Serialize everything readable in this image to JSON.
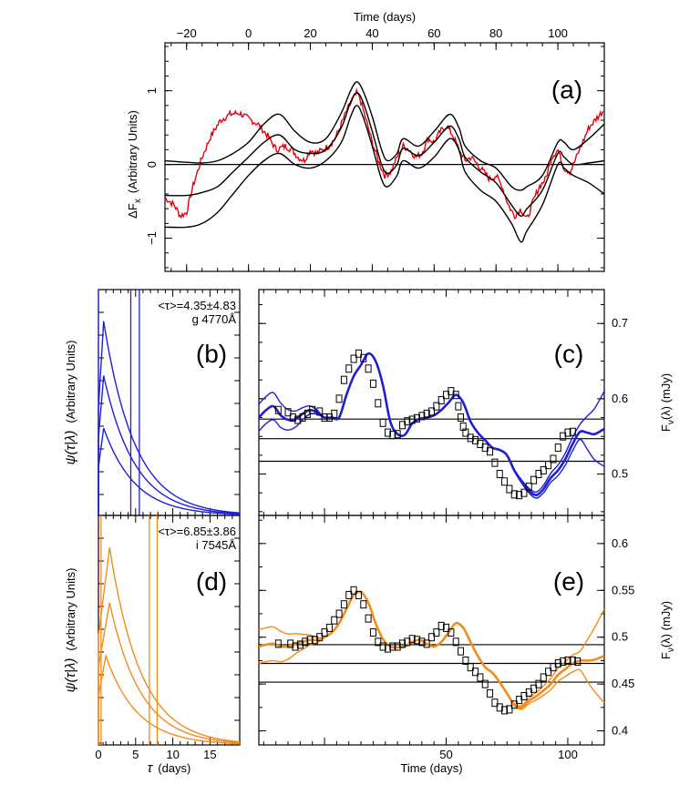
{
  "chart_data": [
    {
      "panel": "(a)",
      "type": "line",
      "title": "",
      "top_axis_label": "Time (days)",
      "top_tick_labels": [
        "−20",
        "0",
        "20",
        "40",
        "60",
        "80",
        "100"
      ],
      "top_ticks": [
        -20,
        0,
        20,
        40,
        60,
        80,
        100
      ],
      "xlim": [
        -27,
        115
      ],
      "ylabel": "ΔF_x  (Arbitrary Units)",
      "ylabel_main": "ΔF",
      "ylabel_sub": "x",
      "ylabel_units": "(Arbitrary Units)",
      "y_tick_labels": [
        "−1",
        "0",
        "1"
      ],
      "y_ticks": [
        -1,
        0,
        1
      ],
      "ylim": [
        -1.45,
        1.65
      ],
      "series": [
        {
          "name": "driving light curve (red)",
          "color": "#e8000b",
          "x": [
            -27,
            -24,
            -22,
            -20,
            -18,
            -15,
            -12,
            -9,
            -6,
            -3,
            0,
            3,
            6,
            9,
            12,
            14,
            16,
            18,
            20,
            22,
            24,
            26,
            28,
            30,
            32,
            34,
            35,
            36,
            38,
            40,
            42,
            44,
            46,
            48,
            50,
            52,
            54,
            56,
            58,
            60,
            62,
            64,
            66,
            68,
            70,
            72,
            74,
            76,
            78,
            80,
            82,
            84,
            86,
            88,
            90,
            92,
            94,
            96,
            98,
            100,
            102,
            104,
            106,
            108,
            110,
            112,
            115
          ],
          "y": [
            -0.45,
            -0.55,
            -0.7,
            -0.65,
            -0.3,
            0.1,
            0.4,
            0.6,
            0.68,
            0.7,
            0.62,
            0.55,
            0.4,
            0.2,
            0.25,
            0.2,
            0.1,
            0.05,
            0.2,
            0.15,
            0.2,
            0.25,
            0.35,
            0.55,
            0.75,
            0.9,
            0.97,
            0.9,
            0.6,
            0.3,
            0.05,
            -0.15,
            -0.1,
            0.1,
            0.25,
            0.2,
            0.1,
            0.15,
            0.35,
            0.3,
            0.45,
            0.52,
            0.4,
            0.2,
            0.05,
            0.1,
            0.0,
            -0.1,
            -0.2,
            -0.15,
            -0.3,
            -0.55,
            -0.7,
            -0.6,
            -0.75,
            -0.5,
            -0.3,
            -0.2,
            0.1,
            0.2,
            -0.05,
            -0.1,
            0.1,
            0.3,
            0.5,
            0.6,
            0.75
          ]
        },
        {
          "name": "model upper",
          "color": "#000000",
          "x": [
            -27,
            -20,
            -15,
            -10,
            -5,
            0,
            5,
            10,
            15,
            20,
            25,
            30,
            33,
            35,
            37,
            40,
            43,
            45,
            48,
            50,
            55,
            60,
            65,
            68,
            70,
            75,
            80,
            85,
            88,
            90,
            95,
            100,
            102,
            105,
            110,
            115
          ],
          "y": [
            0.05,
            0.03,
            0.02,
            0.05,
            0.15,
            0.3,
            0.55,
            0.68,
            0.45,
            0.3,
            0.35,
            0.7,
            1.0,
            1.12,
            1.0,
            0.65,
            0.2,
            0.05,
            0.15,
            0.35,
            0.25,
            0.45,
            0.68,
            0.5,
            0.25,
            0.05,
            -0.05,
            -0.3,
            -0.35,
            -0.3,
            -0.15,
            0.3,
            0.3,
            0.2,
            0.35,
            0.55
          ]
        },
        {
          "name": "model mean",
          "color": "#000000",
          "x": [
            -27,
            -20,
            -15,
            -10,
            -5,
            0,
            5,
            10,
            15,
            20,
            25,
            30,
            33,
            35,
            37,
            40,
            43,
            45,
            48,
            50,
            55,
            60,
            65,
            68,
            70,
            75,
            80,
            85,
            88,
            90,
            95,
            100,
            102,
            105,
            110,
            115
          ],
          "y": [
            -0.42,
            -0.42,
            -0.38,
            -0.3,
            -0.1,
            0.1,
            0.3,
            0.4,
            0.2,
            0.15,
            0.2,
            0.5,
            0.85,
            0.97,
            0.85,
            0.45,
            0.0,
            -0.12,
            0.0,
            0.22,
            0.12,
            0.3,
            0.52,
            0.35,
            0.1,
            -0.1,
            -0.25,
            -0.55,
            -0.7,
            -0.6,
            -0.35,
            0.15,
            0.1,
            0.0,
            0.02,
            0.05
          ]
        },
        {
          "name": "model lower",
          "color": "#000000",
          "x": [
            -27,
            -20,
            -15,
            -10,
            -5,
            0,
            5,
            10,
            15,
            20,
            25,
            30,
            33,
            35,
            37,
            40,
            43,
            45,
            48,
            50,
            55,
            60,
            65,
            68,
            70,
            75,
            80,
            85,
            88,
            90,
            95,
            100,
            102,
            105,
            110,
            115
          ],
          "y": [
            -0.85,
            -0.85,
            -0.8,
            -0.65,
            -0.4,
            -0.15,
            0.05,
            0.15,
            0.0,
            -0.05,
            0.05,
            0.3,
            0.65,
            0.8,
            0.65,
            0.25,
            -0.2,
            -0.3,
            -0.15,
            0.05,
            -0.05,
            0.1,
            0.35,
            0.2,
            -0.1,
            -0.35,
            -0.5,
            -0.8,
            -1.05,
            -0.9,
            -0.55,
            0.0,
            -0.05,
            -0.15,
            -0.25,
            -0.4
          ]
        }
      ],
      "hlines": [
        0
      ]
    },
    {
      "panel": "(b)",
      "type": "line",
      "ylabel": "ψ(τ|λ)  (Arbitrary Units)",
      "ylabel_psi": "ψ(τ|λ)",
      "ylabel_units": "(Arbitrary Units)",
      "xlim": [
        0,
        19
      ],
      "annotation_tau": "<τ>=4.35±4.83",
      "annotation_band": "g 4770Å",
      "color": "#1f1fd6",
      "vlines": [
        0,
        4.35,
        5.5
      ],
      "curves": [
        {
          "name": "upper",
          "peak_tau": 0.7,
          "peak_value": 1.0
        },
        {
          "name": "mean",
          "peak_tau": 0.7,
          "peak_value": 0.72
        },
        {
          "name": "lower",
          "peak_tau": 0.7,
          "peak_value": 0.45
        }
      ]
    },
    {
      "panel": "(c)",
      "type": "line",
      "ylabel": "F_ν(λ)  (mJy)",
      "ylabel_main": "F",
      "ylabel_sub": "ν",
      "ylabel_rest": "(λ)  (mJy)",
      "xlim": [
        -27,
        115
      ],
      "y_tick_labels": [
        "0.5",
        "0.6",
        "0.7"
      ],
      "y_ticks": [
        0.5,
        0.6,
        0.7
      ],
      "ylim": [
        0.445,
        0.745
      ],
      "hlines": [
        0.517,
        0.547,
        0.573
      ],
      "line_color": "#1f1fd6",
      "model_x": [
        -27,
        -24,
        -21,
        -18,
        -15,
        -12,
        -9,
        -6,
        -3,
        0,
        3,
        6,
        9,
        12,
        15,
        18,
        21,
        24,
        27,
        30,
        33,
        36,
        39,
        42,
        45,
        48,
        51,
        54,
        57,
        60,
        63,
        66,
        69,
        72,
        75,
        78,
        81,
        84,
        87,
        90,
        93,
        96,
        99,
        102,
        105,
        108,
        111,
        115
      ],
      "model_y": [
        0.575,
        0.585,
        0.59,
        0.578,
        0.572,
        0.573,
        0.58,
        0.585,
        0.582,
        0.575,
        0.575,
        0.575,
        0.605,
        0.63,
        0.645,
        0.66,
        0.65,
        0.618,
        0.57,
        0.553,
        0.552,
        0.567,
        0.573,
        0.575,
        0.578,
        0.585,
        0.595,
        0.605,
        0.595,
        0.57,
        0.555,
        0.545,
        0.535,
        0.532,
        0.525,
        0.505,
        0.49,
        0.478,
        0.472,
        0.48,
        0.495,
        0.505,
        0.52,
        0.54,
        0.556,
        0.555,
        0.553,
        0.56
      ],
      "data_x": [
        -19,
        -15,
        -13,
        -11,
        -9,
        -7,
        -5,
        -2,
        0,
        2,
        4,
        6,
        8,
        10,
        12,
        14,
        16,
        18,
        20,
        22,
        24,
        26,
        28,
        30,
        32,
        34,
        36,
        38,
        40,
        42,
        44,
        46,
        48,
        50,
        52,
        54,
        55,
        56,
        57,
        58,
        60,
        62,
        64,
        66,
        68,
        70,
        72,
        74,
        76,
        78,
        80,
        82,
        84,
        86,
        88,
        90,
        92,
        94,
        96,
        98,
        100,
        102
      ],
      "data_y": [
        0.585,
        0.582,
        0.575,
        0.572,
        0.575,
        0.58,
        0.585,
        0.583,
        0.575,
        0.575,
        0.58,
        0.6,
        0.625,
        0.64,
        0.653,
        0.66,
        0.654,
        0.64,
        0.62,
        0.594,
        0.568,
        0.555,
        0.552,
        0.553,
        0.565,
        0.57,
        0.572,
        0.574,
        0.577,
        0.58,
        0.583,
        0.59,
        0.598,
        0.605,
        0.61,
        0.605,
        0.59,
        0.575,
        0.563,
        0.555,
        0.548,
        0.545,
        0.54,
        0.535,
        0.53,
        0.515,
        0.5,
        0.49,
        0.48,
        0.473,
        0.472,
        0.475,
        0.483,
        0.492,
        0.5,
        0.505,
        0.512,
        0.52,
        0.535,
        0.55,
        0.555,
        0.556
      ]
    },
    {
      "panel": "(d)",
      "type": "line",
      "ylabel": "ψ(τ|λ)  (Arbitrary Units)",
      "ylabel_psi": "ψ(τ|λ)",
      "ylabel_units": "(Arbitrary Units)",
      "xlabel": "τ  (days)",
      "xlabel_tau": "τ",
      "xlabel_units": "(days)",
      "xlim": [
        0,
        19
      ],
      "x_tick_labels": [
        "0",
        "5",
        "10",
        "15"
      ],
      "x_ticks": [
        0,
        5,
        10,
        15
      ],
      "annotation_tau": "<τ>=6.85±3.86",
      "annotation_band": "i 7545Å",
      "color": "#f28c1c",
      "vlines": [
        0.35,
        6.85,
        7.9
      ],
      "curves": [
        {
          "name": "upper",
          "peak_tau": 1.5,
          "peak_value": 1.0
        },
        {
          "name": "mean",
          "peak_tau": 1.5,
          "peak_value": 0.72
        },
        {
          "name": "lower",
          "peak_tau": 1.0,
          "peak_value": 0.45
        }
      ]
    },
    {
      "panel": "(e)",
      "type": "line",
      "ylabel": "F_ν(λ)  (mJy)",
      "ylabel_main": "F",
      "ylabel_sub": "ν",
      "ylabel_rest": "(λ)  (mJy)",
      "xlabel": "Time (days)",
      "xlim": [
        -27,
        115
      ],
      "x_tick_labels": [
        "50",
        "100"
      ],
      "x_ticks": [
        50,
        100
      ],
      "y_tick_labels": [
        "0.4",
        "0.45",
        "0.5",
        "0.55",
        "0.6"
      ],
      "y_ticks": [
        0.4,
        0.45,
        0.5,
        0.55,
        0.6
      ],
      "ylim": [
        0.385,
        0.63
      ],
      "hlines": [
        0.452,
        0.472,
        0.492
      ],
      "line_color": "#f28c1c",
      "model_x": [
        -27,
        -24,
        -21,
        -18,
        -15,
        -12,
        -9,
        -6,
        -3,
        0,
        3,
        6,
        9,
        12,
        15,
        18,
        21,
        24,
        27,
        30,
        33,
        36,
        39,
        42,
        45,
        48,
        51,
        54,
        57,
        60,
        63,
        66,
        69,
        72,
        75,
        78,
        81,
        84,
        87,
        90,
        93,
        96,
        99,
        102,
        105,
        108,
        111,
        115
      ],
      "model_y": [
        0.49,
        0.492,
        0.493,
        0.49,
        0.49,
        0.493,
        0.495,
        0.497,
        0.497,
        0.5,
        0.505,
        0.515,
        0.53,
        0.545,
        0.548,
        0.537,
        0.515,
        0.498,
        0.49,
        0.489,
        0.49,
        0.495,
        0.497,
        0.493,
        0.49,
        0.495,
        0.505,
        0.515,
        0.51,
        0.495,
        0.48,
        0.468,
        0.462,
        0.452,
        0.44,
        0.428,
        0.425,
        0.432,
        0.437,
        0.443,
        0.45,
        0.46,
        0.466,
        0.472,
        0.475,
        0.475,
        0.476,
        0.48
      ],
      "data_x": [
        -19,
        -14,
        -12,
        -10,
        -8,
        -6,
        -4,
        -2,
        0,
        2,
        4,
        6,
        8,
        10,
        12,
        14,
        16,
        18,
        20,
        22,
        24,
        26,
        28,
        30,
        32,
        34,
        36,
        38,
        40,
        42,
        44,
        46,
        48,
        50,
        52,
        54,
        56,
        58,
        60,
        62,
        64,
        66,
        68,
        70,
        72,
        74,
        76,
        78,
        80,
        82,
        84,
        86,
        88,
        90,
        92,
        94,
        96,
        98,
        100,
        102,
        104
      ],
      "data_y": [
        0.493,
        0.493,
        0.49,
        0.492,
        0.495,
        0.497,
        0.497,
        0.5,
        0.505,
        0.51,
        0.518,
        0.525,
        0.535,
        0.545,
        0.55,
        0.545,
        0.535,
        0.52,
        0.505,
        0.495,
        0.49,
        0.488,
        0.49,
        0.49,
        0.493,
        0.495,
        0.498,
        0.497,
        0.495,
        0.493,
        0.5,
        0.505,
        0.512,
        0.51,
        0.505,
        0.495,
        0.485,
        0.475,
        0.468,
        0.463,
        0.457,
        0.45,
        0.44,
        0.43,
        0.425,
        0.422,
        0.423,
        0.428,
        0.433,
        0.437,
        0.441,
        0.445,
        0.45,
        0.457,
        0.463,
        0.468,
        0.472,
        0.474,
        0.475,
        0.475,
        0.474
      ]
    }
  ]
}
